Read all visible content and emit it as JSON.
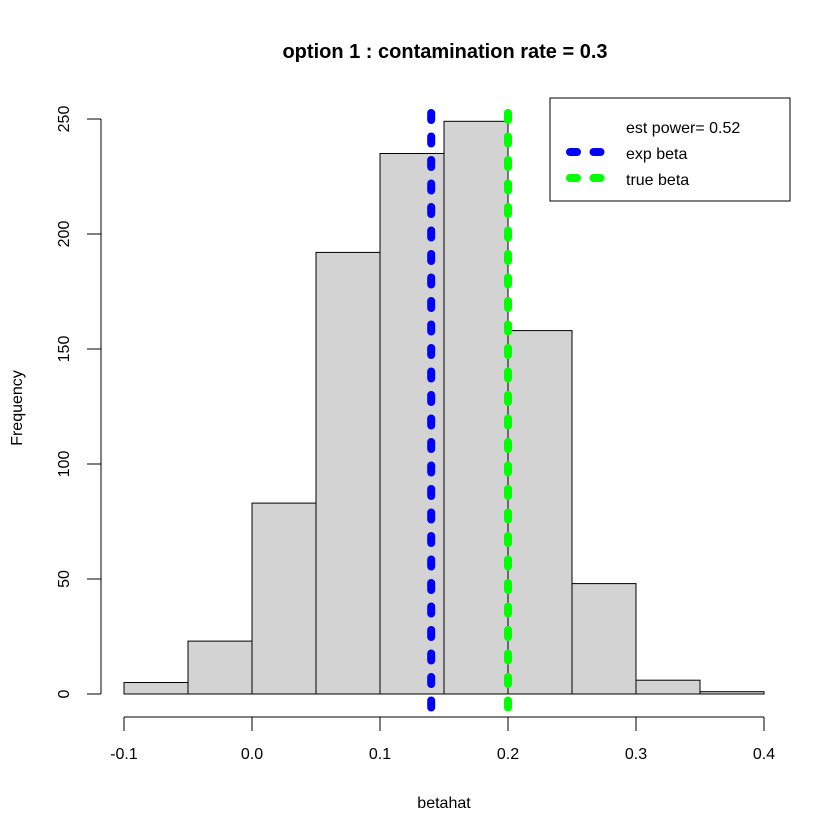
{
  "chart_data": {
    "type": "bar",
    "title": "option 1 : contamination rate = 0.3",
    "xlabel": "betahat",
    "ylabel": "Frequency",
    "xlim": [
      -0.1,
      0.4
    ],
    "ylim": [
      0,
      250
    ],
    "x_ticks": [
      "-0.1",
      "0.0",
      "0.1",
      "0.2",
      "0.3",
      "0.4"
    ],
    "x_tick_values": [
      -0.1,
      0.0,
      0.1,
      0.2,
      0.3,
      0.4
    ],
    "y_ticks": [
      "0",
      "50",
      "100",
      "150",
      "200",
      "250"
    ],
    "y_tick_values": [
      0,
      50,
      100,
      150,
      200,
      250
    ],
    "bins": [
      {
        "start": -0.1,
        "end": -0.05,
        "count": 5
      },
      {
        "start": -0.05,
        "end": 0.0,
        "count": 23
      },
      {
        "start": 0.0,
        "end": 0.05,
        "count": 83
      },
      {
        "start": 0.05,
        "end": 0.1,
        "count": 192
      },
      {
        "start": 0.1,
        "end": 0.15,
        "count": 235
      },
      {
        "start": 0.15,
        "end": 0.2,
        "count": 249
      },
      {
        "start": 0.2,
        "end": 0.25,
        "count": 158
      },
      {
        "start": 0.25,
        "end": 0.3,
        "count": 48
      },
      {
        "start": 0.3,
        "end": 0.35,
        "count": 6
      },
      {
        "start": 0.35,
        "end": 0.4,
        "count": 1
      }
    ],
    "bar_fill": "#d3d3d3",
    "vlines": [
      {
        "name": "exp beta",
        "x": 0.14,
        "color": "#0000ff"
      },
      {
        "name": "true beta",
        "x": 0.2,
        "color": "#00ff00"
      }
    ],
    "legend": {
      "placement": "top-right",
      "entries": [
        {
          "label": "est power= 0.52",
          "color": ""
        },
        {
          "label": "exp beta",
          "color": "#0000ff"
        },
        {
          "label": "true beta",
          "color": "#00ff00"
        }
      ]
    },
    "grid": false
  }
}
